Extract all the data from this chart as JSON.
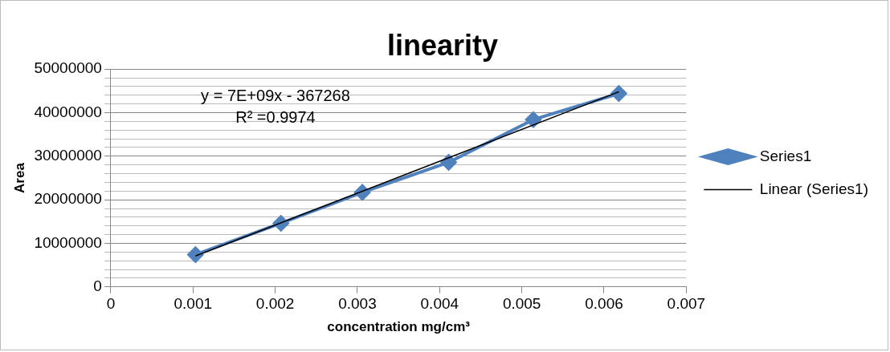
{
  "chart_data": {
    "type": "line",
    "title": "linearity",
    "xlabel": "concentration mg/cm³",
    "ylabel": "Area",
    "x": [
      0.00103,
      0.00207,
      0.00306,
      0.00411,
      0.00514,
      0.00618
    ],
    "series": [
      {
        "name": "Series1",
        "color": "#4f81bd",
        "values": [
          7400000,
          14600000,
          21700000,
          28600000,
          38400000,
          44400000
        ],
        "marker": "diamond"
      },
      {
        "name": "Linear (Series1)",
        "color": "#000000",
        "x": [
          0.00103,
          0.00618
        ],
        "values": [
          7100000,
          44800000
        ],
        "marker": "none"
      }
    ],
    "xlim": [
      0,
      0.007
    ],
    "xticks": [
      0,
      0.001,
      0.002,
      0.003,
      0.004,
      0.005,
      0.006,
      0.007
    ],
    "ylim": [
      0,
      50000000
    ],
    "yticks": [
      0,
      {
        "value": 2000000,
        "label": null
      },
      {
        "value": 4000000,
        "label": null
      },
      {
        "value": 6000000,
        "label": null
      },
      {
        "value": 8000000,
        "label": null
      },
      10000000,
      {
        "value": 12000000,
        "label": null
      },
      {
        "value": 14000000,
        "label": null
      },
      {
        "value": 16000000,
        "label": null
      },
      {
        "value": 18000000,
        "label": null
      },
      20000000,
      {
        "value": 22000000,
        "label": null
      },
      {
        "value": 24000000,
        "label": null
      },
      {
        "value": 26000000,
        "label": null
      },
      {
        "value": 28000000,
        "label": null
      },
      30000000,
      {
        "value": 32000000,
        "label": null
      },
      {
        "value": 34000000,
        "label": null
      },
      {
        "value": 36000000,
        "label": null
      },
      {
        "value": 38000000,
        "label": null
      },
      40000000,
      {
        "value": 42000000,
        "label": null
      },
      {
        "value": 44000000,
        "label": null
      },
      {
        "value": 46000000,
        "label": null
      },
      {
        "value": 48000000,
        "label": null
      },
      50000000
    ],
    "grid": "y",
    "legend": "right",
    "annotations": [
      "y = 7E+09x - 367268",
      "R² =0.9974"
    ]
  }
}
